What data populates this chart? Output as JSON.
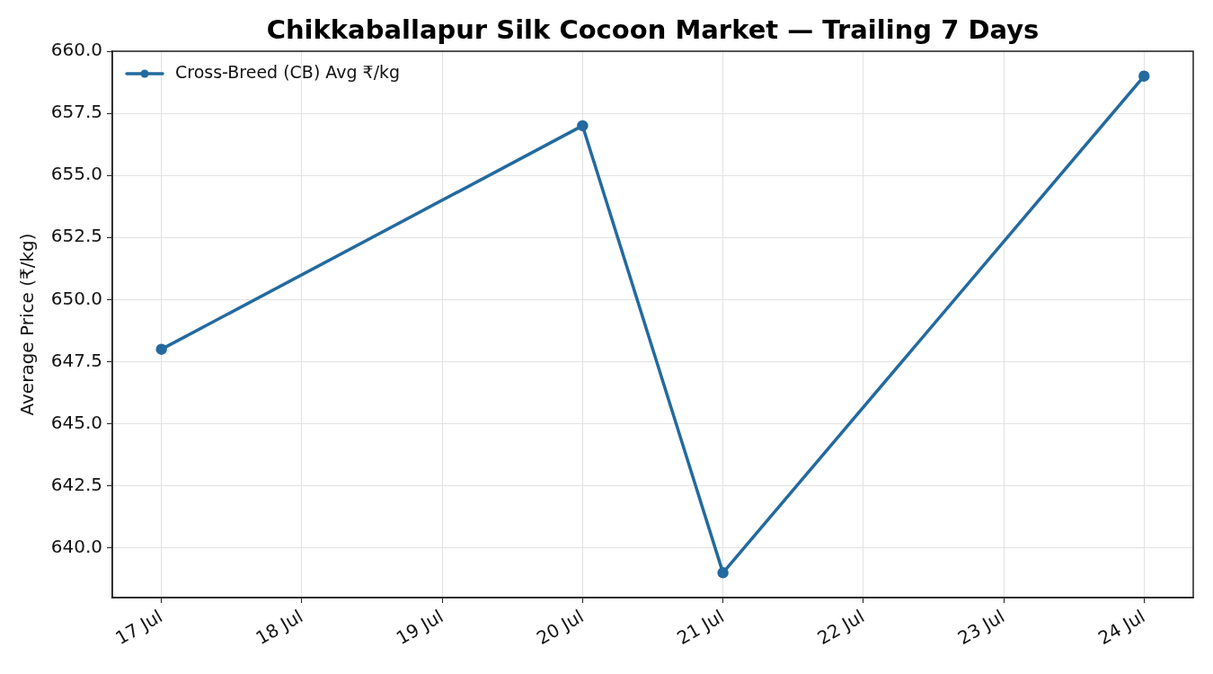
{
  "chart_data": {
    "type": "line",
    "title": "Chikkaballapur Silk Cocoon Market — Trailing 7 Days",
    "ylabel": "Average Price (₹/kg)",
    "x": [
      "--07-17",
      "--07-20",
      "--07-21",
      "--07-24"
    ],
    "series": [
      {
        "name": "Cross-Breed (CB) Avg ₹/kg",
        "color": "#236a9f",
        "values": [
          648,
          657,
          639,
          659
        ]
      }
    ],
    "xlim": [
      "--07-16T15:36",
      "--07-24T08:24"
    ],
    "xticks": [
      {
        "value": "--07-17",
        "label": "17 Jul"
      },
      {
        "value": "--07-18",
        "label": "18 Jul"
      },
      {
        "value": "--07-19",
        "label": "19 Jul"
      },
      {
        "value": "--07-20",
        "label": "20 Jul"
      },
      {
        "value": "--07-21",
        "label": "21 Jul"
      },
      {
        "value": "--07-22",
        "label": "22 Jul"
      },
      {
        "value": "--07-23",
        "label": "23 Jul"
      },
      {
        "value": "--07-24",
        "label": "24 Jul"
      }
    ],
    "ylim": [
      638,
      660
    ],
    "yticks": [
      {
        "value": 640,
        "label": "640.0"
      },
      {
        "value": 642.5,
        "label": "642.5"
      },
      {
        "value": 645,
        "label": "645.0"
      },
      {
        "value": 647.5,
        "label": "647.5"
      },
      {
        "value": 650,
        "label": "650.0"
      },
      {
        "value": 652.5,
        "label": "652.5"
      },
      {
        "value": 655,
        "label": "655.0"
      },
      {
        "value": 657.5,
        "label": "657.5"
      },
      {
        "value": 660,
        "label": "660.0"
      }
    ],
    "grid": true,
    "legend": "top left",
    "marker": "circle",
    "line_style": "solid"
  }
}
